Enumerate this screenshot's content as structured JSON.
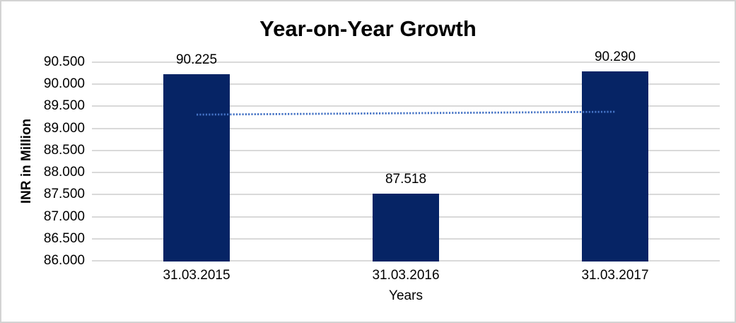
{
  "chart_data": {
    "type": "bar",
    "title": "Year-on-Year Growth",
    "xlabel": "Years",
    "ylabel": "INR in Million",
    "categories": [
      "31.03.2015",
      "31.03.2016",
      "31.03.2017"
    ],
    "values": [
      90.225,
      87.518,
      90.29
    ],
    "value_labels": [
      "90.225",
      "87.518",
      "90.290"
    ],
    "ylim": [
      86.0,
      90.5
    ],
    "ytick_step": 0.5,
    "ytick_labels": [
      "90.500",
      "90.000",
      "89.500",
      "89.000",
      "88.500",
      "88.000",
      "87.500",
      "87.000",
      "86.500",
      "86.000"
    ],
    "grid": true,
    "legend": false,
    "trendline": {
      "type": "linear",
      "style": "dotted",
      "start_value": 89.312,
      "end_value": 89.377
    },
    "colors": {
      "bar": "#062465",
      "trendline": "#4472c4",
      "gridline": "#d9d9d9",
      "text": "#000000",
      "frame_border": "#d3d3d3",
      "background": "#ffffff"
    }
  }
}
